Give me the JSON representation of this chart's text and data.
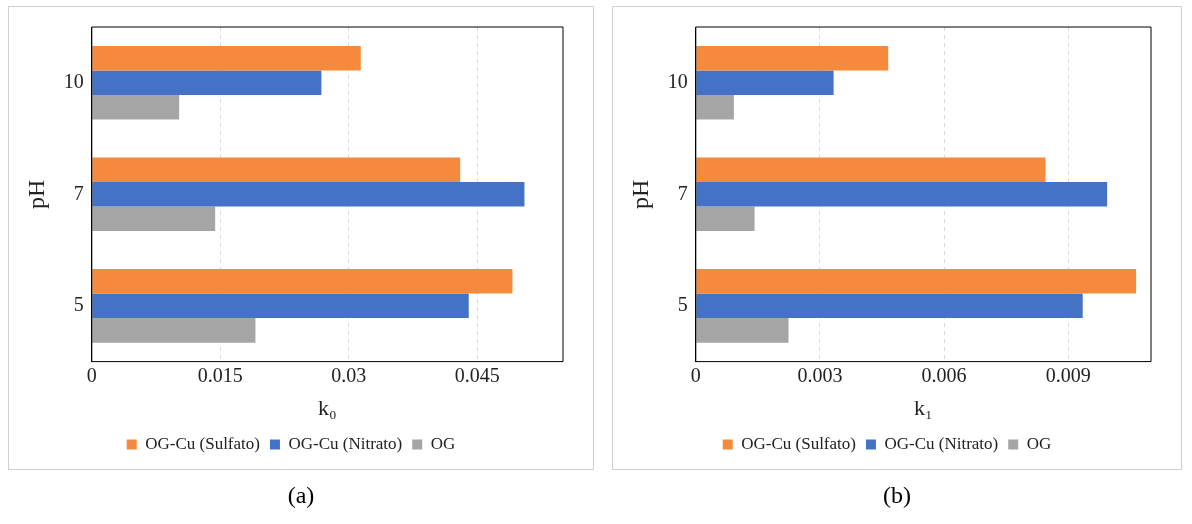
{
  "chart_data": [
    {
      "type": "bar",
      "orientation": "horizontal",
      "categories": [
        "10",
        "7",
        "5"
      ],
      "xlabel": "k₀",
      "ylabel": "pH",
      "series": [
        {
          "name": "OG-Cu (Sulfato)",
          "color": "#f58a3c",
          "values": [
            0.0314,
            0.043,
            0.0491
          ]
        },
        {
          "name": "OG-Cu (Nitrato)",
          "color": "#4472c4",
          "values": [
            0.0268,
            0.0505,
            0.044
          ]
        },
        {
          "name": "OG",
          "color": "#a5a5a5",
          "values": [
            0.0102,
            0.0144,
            0.0191
          ]
        }
      ],
      "xlim": [
        0,
        0.055
      ],
      "xticks": [
        0,
        0.015,
        0.03,
        0.045
      ],
      "grid": "x",
      "legend": "bottom",
      "annotations": [
        "(a)"
      ]
    },
    {
      "type": "bar",
      "orientation": "horizontal",
      "categories": [
        "10",
        "7",
        "5"
      ],
      "xlabel": "k₁",
      "ylabel": "pH",
      "series": [
        {
          "name": "OG-Cu (Sulfato)",
          "color": "#f58a3c",
          "values": [
            0.00465,
            0.00845,
            0.01064
          ]
        },
        {
          "name": "OG-Cu (Nitrato)",
          "color": "#4472c4",
          "values": [
            0.00333,
            0.00994,
            0.00935
          ]
        },
        {
          "name": "OG",
          "color": "#a5a5a5",
          "values": [
            0.00092,
            0.00142,
            0.00224
          ]
        }
      ],
      "xlim": [
        0,
        0.011
      ],
      "xticks": [
        0,
        0.003,
        0.006,
        0.009
      ],
      "grid": "x",
      "legend": "bottom",
      "annotations": [
        "(b)"
      ]
    }
  ]
}
